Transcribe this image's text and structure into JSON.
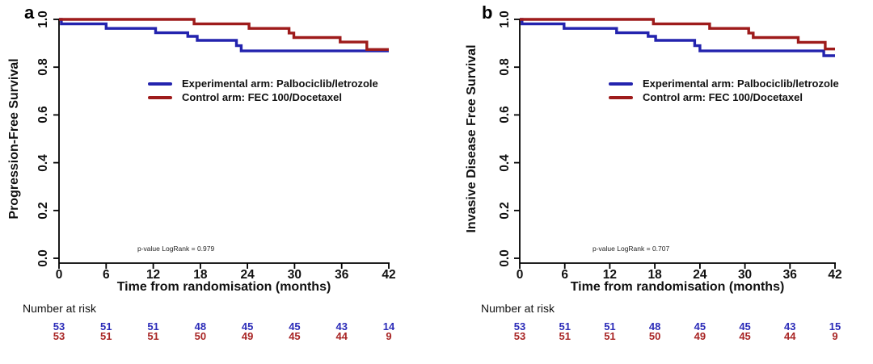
{
  "chart_data": [
    {
      "type": "line",
      "chart_style": "kaplan-meier-step",
      "panel_label": "a",
      "title": "",
      "xlabel": "Time from randomisation (months)",
      "ylabel": "Progression-Free Survival",
      "xlim": [
        0,
        42
      ],
      "ylim": [
        0.0,
        1.0
      ],
      "xticks": [
        0,
        6,
        12,
        18,
        24,
        30,
        36,
        42
      ],
      "yticks": [
        0.0,
        0.2,
        0.4,
        0.6,
        0.8,
        1.0
      ],
      "ytick_labels": [
        "0.0",
        "0.2",
        "0.4",
        "0.6",
        "0.8",
        "1.0"
      ],
      "grid": false,
      "legend_position": "inside-middle-left",
      "annotation": "p-value LogRank = 0.979",
      "series": [
        {
          "name": "Experimental arm: Palbociclib/letrozole",
          "color": "#2323ae",
          "steps": [
            [
              0,
              1.0
            ],
            [
              0.3,
              0.981
            ],
            [
              6.0,
              0.962
            ],
            [
              12.3,
              0.944
            ],
            [
              16.4,
              0.929
            ],
            [
              17.6,
              0.912
            ],
            [
              22.6,
              0.89
            ],
            [
              23.2,
              0.868
            ],
            [
              42,
              0.868
            ]
          ]
        },
        {
          "name": "Control arm: FEC 100/Docetaxel",
          "color": "#9e1b1b",
          "steps": [
            [
              0,
              1.0
            ],
            [
              17.2,
              0.981
            ],
            [
              24.2,
              0.962
            ],
            [
              29.3,
              0.943
            ],
            [
              29.9,
              0.924
            ],
            [
              35.8,
              0.905
            ],
            [
              39.2,
              0.874
            ],
            [
              42,
              0.874
            ]
          ]
        }
      ],
      "number_at_risk": {
        "header": "Number at risk",
        "times": [
          0,
          6,
          12,
          18,
          24,
          30,
          36,
          42
        ],
        "rows": [
          {
            "name": "Experimental arm",
            "color": "#2b2bb8",
            "values": [
              53,
              51,
              51,
              48,
              45,
              45,
              43,
              14
            ]
          },
          {
            "name": "Control arm",
            "color": "#a82525",
            "values": [
              53,
              51,
              51,
              50,
              49,
              45,
              44,
              9
            ]
          }
        ]
      }
    },
    {
      "type": "line",
      "chart_style": "kaplan-meier-step",
      "panel_label": "b",
      "title": "",
      "xlabel": "Time from randomisation (months)",
      "ylabel": "Invasive Disease Free Survival",
      "xlim": [
        0,
        42
      ],
      "ylim": [
        0.0,
        1.0
      ],
      "xticks": [
        0,
        6,
        12,
        18,
        24,
        30,
        36,
        42
      ],
      "yticks": [
        0.0,
        0.2,
        0.4,
        0.6,
        0.8,
        1.0
      ],
      "ytick_labels": [
        "0.0",
        "0.2",
        "0.4",
        "0.6",
        "0.8",
        "1.0"
      ],
      "grid": false,
      "legend_position": "inside-middle-left",
      "annotation": "p-value LogRank = 0.707",
      "series": [
        {
          "name": "Experimental arm: Palbociclib/letrozole",
          "color": "#2323ae",
          "steps": [
            [
              0,
              1.0
            ],
            [
              0.3,
              0.981
            ],
            [
              5.9,
              0.962
            ],
            [
              12.9,
              0.944
            ],
            [
              17.1,
              0.929
            ],
            [
              18.1,
              0.912
            ],
            [
              23.3,
              0.89
            ],
            [
              24.0,
              0.868
            ],
            [
              40.5,
              0.848
            ],
            [
              42,
              0.848
            ]
          ]
        },
        {
          "name": "Control arm: FEC 100/Docetaxel",
          "color": "#9e1b1b",
          "steps": [
            [
              0,
              1.0
            ],
            [
              17.8,
              0.981
            ],
            [
              25.3,
              0.962
            ],
            [
              30.5,
              0.943
            ],
            [
              31.1,
              0.924
            ],
            [
              37.1,
              0.904
            ],
            [
              40.7,
              0.876
            ],
            [
              42,
              0.876
            ]
          ]
        }
      ],
      "number_at_risk": {
        "header": "Number at risk",
        "times": [
          0,
          6,
          12,
          18,
          24,
          30,
          36,
          42
        ],
        "rows": [
          {
            "name": "Experimental arm",
            "color": "#2b2bb8",
            "values": [
              53,
              51,
              51,
              48,
              45,
              45,
              43,
              15
            ]
          },
          {
            "name": "Control arm",
            "color": "#a82525",
            "values": [
              53,
              51,
              51,
              50,
              49,
              45,
              44,
              9
            ]
          }
        ]
      }
    }
  ]
}
